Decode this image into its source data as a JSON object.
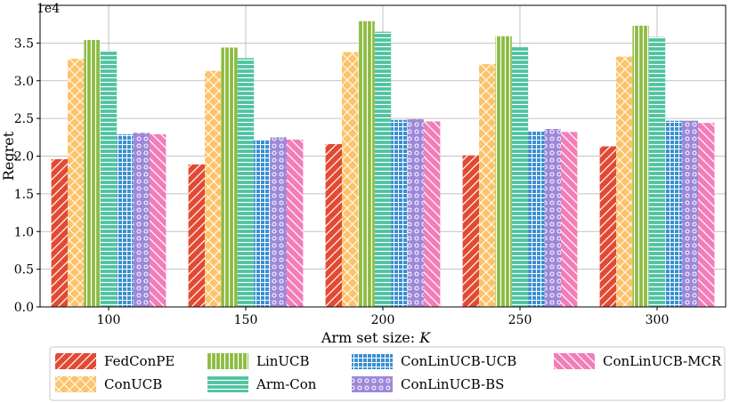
{
  "chart_data": {
    "type": "bar",
    "title": "",
    "xlabel": "Arm set size: ",
    "xlabel_var": "K",
    "ylabel": "Regret",
    "y_multiplier": "1e4",
    "ylim": [
      0,
      4.0
    ],
    "yticks": [
      0.0,
      0.5,
      1.0,
      1.5,
      2.0,
      2.5,
      3.0,
      3.5
    ],
    "ytick_labels": [
      "0.0",
      "0.5",
      "1.0",
      "1.5",
      "2.0",
      "2.5",
      "3.0",
      "3.5"
    ],
    "grid": true,
    "legend_position": "bottom",
    "categories": [
      "100",
      "150",
      "200",
      "250",
      "300"
    ],
    "series": [
      {
        "name": "FedConPE",
        "color": "#E34A33",
        "pattern": "diag",
        "values": [
          1.96,
          1.89,
          2.16,
          2.01,
          2.13
        ]
      },
      {
        "name": "ConUCB",
        "color": "#FDC36A",
        "pattern": "cross",
        "values": [
          3.29,
          3.13,
          3.38,
          3.22,
          3.32
        ]
      },
      {
        "name": "LinUCB",
        "color": "#8DBB42",
        "pattern": "vert",
        "values": [
          3.54,
          3.44,
          3.79,
          3.59,
          3.73
        ]
      },
      {
        "name": "Arm-Con",
        "color": "#4FC3A1",
        "pattern": "horiz",
        "values": [
          3.4,
          3.3,
          3.65,
          3.45,
          3.58
        ]
      },
      {
        "name": "ConLinUCB-UCB",
        "color": "#3A8FD0",
        "pattern": "grid",
        "values": [
          2.29,
          2.21,
          2.48,
          2.33,
          2.47
        ]
      },
      {
        "name": "ConLinUCB-BS",
        "color": "#9D88D9",
        "pattern": "dots",
        "values": [
          2.31,
          2.25,
          2.49,
          2.36,
          2.47
        ]
      },
      {
        "name": "ConLinUCB-MCR",
        "color": "#F27DB7",
        "pattern": "backdiag",
        "values": [
          2.29,
          2.22,
          2.46,
          2.32,
          2.44
        ]
      }
    ]
  }
}
